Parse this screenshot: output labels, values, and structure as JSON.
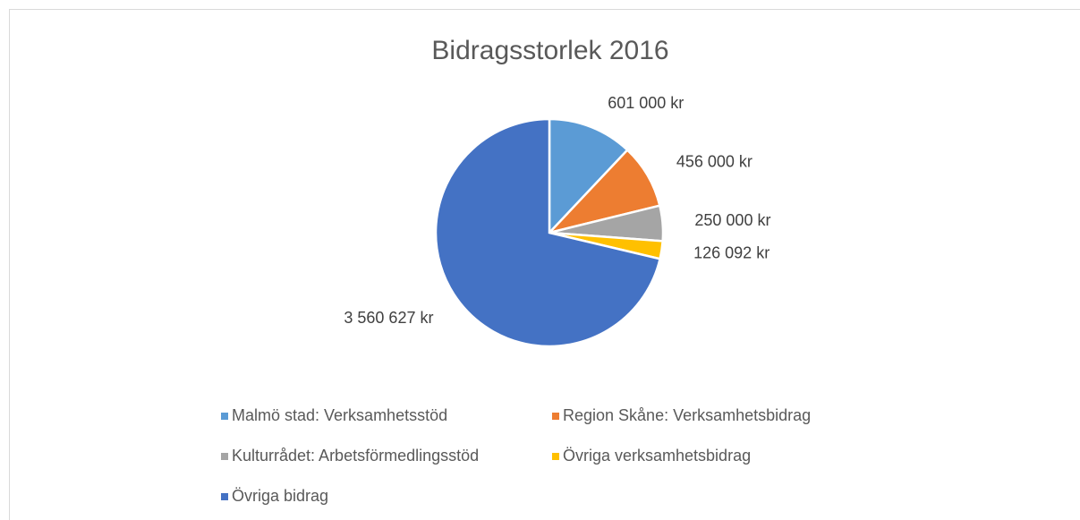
{
  "chart_data": {
    "type": "pie",
    "title": "Bidragsstorlek 2016",
    "categories": [
      "Malmö stad: Verksamhetsstöd",
      "Region Skåne: Verksamhetsbidrag",
      "Kulturrådet: Arbetsförmedlingsstöd",
      "Övriga verksamhetsbidrag",
      "Övriga bidrag"
    ],
    "values": [
      601000,
      456000,
      250000,
      126092,
      3560627
    ],
    "value_labels": [
      "601 000 kr",
      "456 000 kr",
      "250 000 kr",
      "126 092 kr",
      "3 560 627 kr"
    ],
    "colors": [
      "#5b9bd5",
      "#ed7d31",
      "#a5a5a5",
      "#ffc000",
      "#4472c4"
    ],
    "legend": "bottom"
  }
}
